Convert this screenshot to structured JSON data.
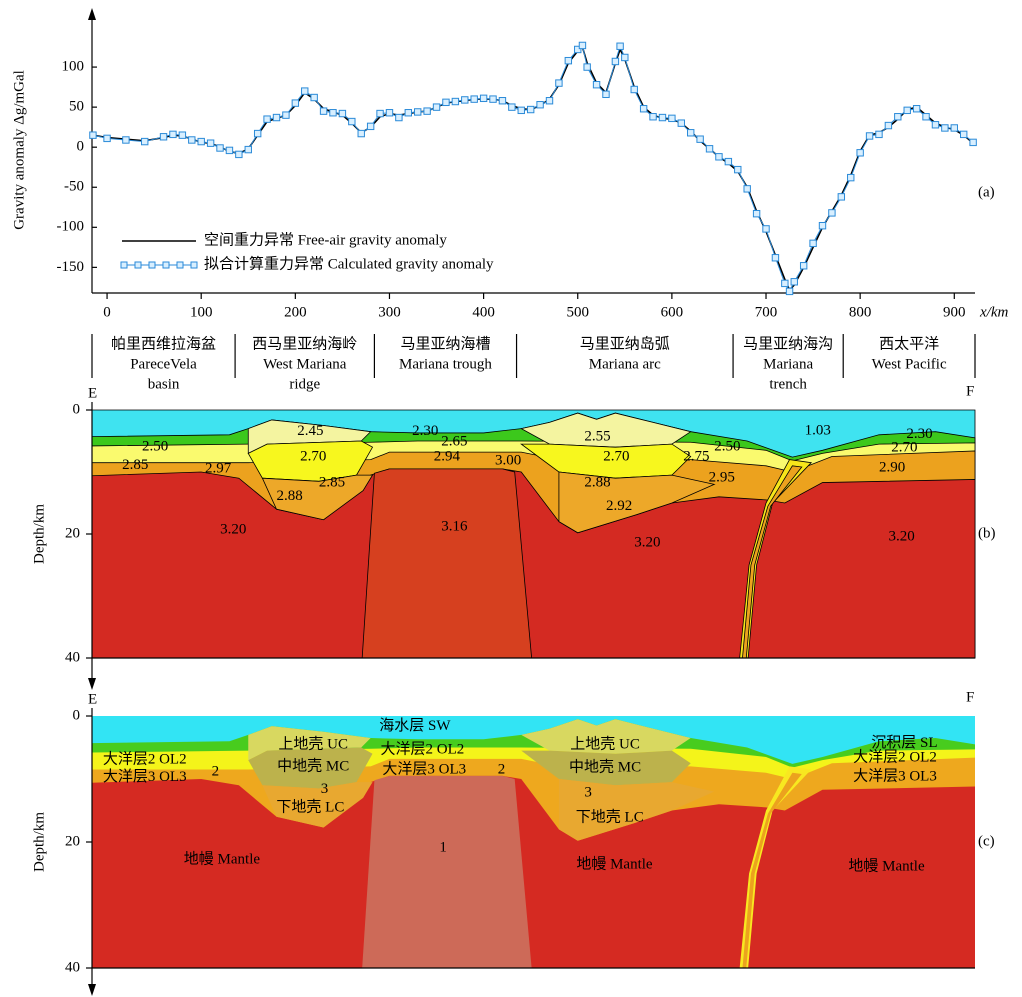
{
  "chart_data": [
    {
      "type": "line",
      "y_label": "Gravity anomaly Δg/mGal",
      "x_label": "x/km",
      "panel_label": "(a)",
      "xlim": [
        -16,
        922
      ],
      "ylim": [
        -182,
        165
      ],
      "xticks": [
        0,
        100,
        200,
        300,
        400,
        500,
        600,
        700,
        800,
        900
      ],
      "yticks": [
        -150,
        -100,
        -50,
        0,
        50,
        100
      ],
      "legend": "lower left",
      "x": [
        -15,
        0,
        20,
        40,
        60,
        70,
        80,
        90,
        100,
        110,
        120,
        130,
        140,
        150,
        160,
        170,
        180,
        190,
        200,
        210,
        220,
        230,
        240,
        250,
        260,
        270,
        280,
        290,
        300,
        310,
        320,
        330,
        340,
        350,
        360,
        370,
        380,
        390,
        400,
        410,
        420,
        430,
        440,
        450,
        460,
        470,
        480,
        490,
        500,
        505,
        510,
        520,
        530,
        540,
        545,
        550,
        560,
        570,
        580,
        590,
        600,
        610,
        620,
        630,
        640,
        650,
        660,
        670,
        680,
        690,
        700,
        710,
        720,
        725,
        730,
        740,
        750,
        760,
        770,
        780,
        790,
        800,
        810,
        820,
        830,
        840,
        850,
        860,
        870,
        880,
        890,
        900,
        910,
        920
      ],
      "series": [
        {
          "name": "空间重力异常 Free-air gravity anomaly",
          "color": "#000000",
          "markers": false,
          "values": [
            15,
            12,
            10,
            8,
            12,
            15,
            14,
            10,
            6,
            5,
            0,
            -5,
            -8,
            -2,
            15,
            32,
            36,
            40,
            52,
            68,
            60,
            48,
            44,
            40,
            30,
            18,
            25,
            38,
            42,
            40,
            42,
            44,
            45,
            50,
            55,
            57,
            58,
            60,
            60,
            60,
            58,
            52,
            48,
            47,
            52,
            60,
            78,
            105,
            120,
            125,
            105,
            80,
            68,
            105,
            122,
            110,
            75,
            50,
            40,
            36,
            35,
            30,
            20,
            8,
            -2,
            -12,
            -20,
            -30,
            -50,
            -80,
            -105,
            -135,
            -165,
            -178,
            -172,
            -150,
            -125,
            -100,
            -80,
            -60,
            -35,
            -5,
            15,
            18,
            25,
            35,
            47,
            50,
            40,
            30,
            25,
            22,
            15,
            5
          ]
        },
        {
          "name": "拟合计算重力异常 Calculated gravity anomaly",
          "color": "#2a8ad8",
          "markers": true,
          "values": [
            15,
            11,
            9,
            7,
            13,
            16,
            15,
            9,
            7,
            5,
            -1,
            -4,
            -9,
            -3,
            17,
            35,
            37,
            40,
            55,
            70,
            62,
            45,
            43,
            42,
            32,
            17,
            26,
            42,
            43,
            37,
            43,
            44,
            45,
            50,
            56,
            57,
            59,
            60,
            61,
            60,
            58,
            50,
            46,
            47,
            53,
            58,
            80,
            108,
            122,
            127,
            100,
            78,
            66,
            107,
            126,
            112,
            72,
            48,
            38,
            37,
            36,
            30,
            18,
            10,
            -2,
            -12,
            -18,
            -28,
            -52,
            -83,
            -102,
            -138,
            -170,
            -180,
            -168,
            -148,
            -120,
            -98,
            -82,
            -62,
            -38,
            -7,
            14,
            16,
            27,
            38,
            46,
            48,
            38,
            28,
            24,
            24,
            16,
            6
          ]
        }
      ],
      "region_bounds": [
        -16,
        136,
        284,
        435,
        665,
        782,
        922
      ],
      "regions": [
        {
          "lines": [
            "帕里西维拉海盆",
            "PareceVela",
            "basin"
          ]
        },
        {
          "lines": [
            "西马里亚纳海岭",
            "West Mariana",
            "ridge"
          ]
        },
        {
          "lines": [
            "马里亚纳海槽",
            "Mariana trough"
          ]
        },
        {
          "lines": [
            "马里亚纳岛弧",
            "Mariana arc"
          ]
        },
        {
          "lines": [
            "马里亚纳海沟",
            "Mariana",
            "trench"
          ]
        },
        {
          "lines": [
            "西太平洋",
            "West Pacific"
          ]
        }
      ]
    },
    {
      "type": "section",
      "y_label": "Depth/km",
      "panel_label": "(b)",
      "left": "E",
      "right": "F",
      "xlim": [
        -16,
        922
      ],
      "ylim": [
        0,
        40
      ],
      "yticks": [
        0,
        20,
        40
      ],
      "outline": true,
      "bodies": [
        {
          "color": "#3fe3f0",
          "x": [
            -16,
            922,
            922,
            -16
          ],
          "depth": [
            0,
            0,
            40,
            40
          ]
        },
        {
          "color": "#3cc81c",
          "x": [
            -16,
            130,
            150,
            175,
            230,
            280,
            330,
            400,
            440,
            470,
            500,
            520,
            540,
            580,
            620,
            680,
            728,
            760,
            820,
            880,
            922,
            922,
            -16
          ],
          "depth": [
            4.3,
            4.0,
            3.0,
            1.6,
            2.5,
            3.5,
            3.7,
            3.7,
            3.0,
            2.0,
            0.5,
            1.5,
            0.5,
            2.0,
            3.5,
            5.0,
            7.6,
            6.5,
            4.0,
            3.5,
            4.5,
            40,
            40
          ]
        },
        {
          "color": "#fafa6e",
          "x": [
            -16,
            150,
            280,
            330,
            440,
            620,
            700,
            728,
            760,
            820,
            922,
            922,
            -16
          ],
          "depth": [
            5.8,
            5.5,
            5.2,
            5.0,
            5.0,
            5.2,
            6.5,
            8.2,
            7.0,
            5.5,
            5.3,
            40,
            40
          ]
        },
        {
          "color": "#eca21e",
          "x": [
            -16,
            150,
            280,
            300,
            440,
            480,
            620,
            700,
            728,
            770,
            922,
            922,
            -16
          ],
          "depth": [
            8.5,
            8.5,
            8.0,
            6.8,
            6.8,
            8.0,
            8.0,
            9.0,
            10.0,
            7.5,
            6.6,
            40,
            40
          ]
        },
        {
          "color": "#d42a22",
          "x": [
            -16,
            100,
            140,
            180,
            230,
            270,
            280,
            300,
            420,
            440,
            480,
            500,
            560,
            600,
            650,
            700,
            720,
            760,
            922,
            922,
            -16
          ],
          "depth": [
            10.6,
            10.0,
            11.0,
            16.0,
            17.7,
            13.0,
            10.5,
            9.5,
            9.5,
            10.0,
            18.0,
            19.8,
            17.0,
            15.0,
            14.0,
            14.5,
            15.0,
            11.7,
            11.2,
            40,
            40
          ]
        },
        {
          "color": "#d6401f",
          "x": [
            284,
            300,
            420,
            433,
            451,
            271
          ],
          "depth": [
            10.2,
            9.5,
            9.5,
            10.0,
            40,
            40
          ]
        },
        {
          "color": "#f4f4a0",
          "x": [
            150,
            175,
            230,
            280,
            270,
            230,
            170,
            150
          ],
          "depth": [
            3.0,
            1.6,
            2.5,
            3.5,
            5.0,
            5.2,
            5.5,
            7.0
          ]
        },
        {
          "color": "#f7f71e",
          "x": [
            150,
            170,
            230,
            270,
            282,
            265,
            225,
            165
          ],
          "depth": [
            7.0,
            5.5,
            5.2,
            5.0,
            6.0,
            10.5,
            11.5,
            11.0
          ]
        },
        {
          "color": "#eda829",
          "x": [
            165,
            225,
            265,
            282,
            272,
            230,
            180
          ],
          "depth": [
            11.0,
            11.5,
            10.5,
            10.5,
            13.0,
            17.7,
            16.0
          ]
        },
        {
          "color": "#f4f4a0",
          "x": [
            440,
            470,
            500,
            520,
            540,
            580,
            620,
            600,
            540,
            470
          ],
          "depth": [
            3.0,
            2.0,
            0.5,
            1.5,
            0.5,
            2.0,
            3.5,
            5.5,
            6.0,
            5.5
          ]
        },
        {
          "color": "#f7f71e",
          "x": [
            440,
            470,
            540,
            600,
            620,
            600,
            540,
            480
          ],
          "depth": [
            5.5,
            5.5,
            6.0,
            5.5,
            7.5,
            10.5,
            11.0,
            10.0
          ]
        },
        {
          "color": "#eda829",
          "x": [
            480,
            540,
            600,
            645,
            600,
            560,
            500,
            480
          ],
          "depth": [
            10.0,
            11.0,
            10.5,
            12.0,
            15.0,
            17.0,
            19.8,
            18.0
          ]
        },
        {
          "color": "#f7e61a",
          "x": [
            748,
            707,
            690,
            681,
            672,
            682,
            700,
            725
          ],
          "depth": [
            8.5,
            15,
            25,
            40,
            40,
            25,
            15,
            8
          ]
        },
        {
          "color": "#eca21e",
          "x": [
            738,
            705,
            688,
            679,
            675,
            684,
            702,
            728
          ],
          "depth": [
            9.2,
            15.5,
            25,
            40,
            40,
            25,
            15.5,
            9
          ]
        }
      ],
      "labels": [
        {
          "text": 1.03,
          "x": 755,
          "depth": 3.4
        },
        {
          "text": {
            "value": 2.3,
            "label": "2.30"
          },
          "x": 338,
          "depth": 3.5
        },
        {
          "text": {
            "value": 2.3,
            "label": "2.30"
          },
          "x": 863,
          "depth": 4.0
        },
        {
          "text": {
            "value": 2.5,
            "label": "2.50"
          },
          "x": 51,
          "depth": 6.0
        },
        {
          "text": {
            "value": 2.5,
            "label": "2.50"
          },
          "x": 659,
          "depth": 6.0
        },
        {
          "text": 2.85,
          "x": 30,
          "depth": 9.0
        },
        {
          "text": 2.97,
          "x": 118,
          "depth": 9.5
        },
        {
          "text": 2.45,
          "x": 216,
          "depth": 3.5
        },
        {
          "text": {
            "value": 2.7,
            "label": "2.70"
          },
          "x": 219,
          "depth": 7.6
        },
        {
          "text": {
            "value": 2.7,
            "label": "2.70"
          },
          "x": 541,
          "depth": 7.6
        },
        {
          "text": {
            "value": 2.7,
            "label": "2.70"
          },
          "x": 847,
          "depth": 6.1
        },
        {
          "text": 2.88,
          "x": 194,
          "depth": 14.0
        },
        {
          "text": 2.88,
          "x": 521,
          "depth": 11.8
        },
        {
          "text": 2.85,
          "x": 239,
          "depth": 11.8
        },
        {
          "text": 2.65,
          "x": 369,
          "depth": 5.2
        },
        {
          "text": 2.94,
          "x": 361,
          "depth": 7.6
        },
        {
          "text": {
            "value": 3,
            "label": "3.00"
          },
          "x": 426,
          "depth": 8.2
        },
        {
          "text": 2.55,
          "x": 521,
          "depth": 4.4
        },
        {
          "text": 2.75,
          "x": 626,
          "depth": 7.6
        },
        {
          "text": 2.95,
          "x": 653,
          "depth": 11.0
        },
        {
          "text": 2.92,
          "x": 544,
          "depth": 15.6
        },
        {
          "text": {
            "value": 2.9,
            "label": "2.90"
          },
          "x": 834,
          "depth": 9.4
        },
        {
          "text": {
            "value": 3.2,
            "label": "3.20"
          },
          "x": 134,
          "depth": 19.4
        },
        {
          "text": {
            "value": 3.2,
            "label": "3.20"
          },
          "x": 574,
          "depth": 21.5
        },
        {
          "text": {
            "value": 3.2,
            "label": "3.20"
          },
          "x": 844,
          "depth": 20.5
        },
        {
          "text": 3.16,
          "x": 369,
          "depth": 18.9
        }
      ]
    },
    {
      "type": "section",
      "y_label": "Depth/km",
      "panel_label": "(c)",
      "left": "E",
      "right": "F",
      "xlim": [
        -16,
        922
      ],
      "ylim": [
        0,
        40
      ],
      "yticks": [
        0,
        20,
        40
      ],
      "outline": false,
      "fills": [
        "#32e4f4",
        "#48cc1e",
        "#f4f41a",
        "#eea81e",
        "#d52a22",
        "#cd6a58",
        "#d8d860",
        "#bcb24c",
        "#e8a830",
        "#d8d860",
        "#bcb24c",
        "#e8a830",
        "#f8e820",
        "#eca21e"
      ],
      "labels": [
        {
          "text": "海水层  SW",
          "x": 327,
          "depth": 1.7
        },
        {
          "text": "大洋层2 OL2",
          "x": 335,
          "depth": 5.4
        },
        {
          "text": "大洋层2 OL2",
          "x": 40,
          "depth": 7.0
        },
        {
          "text": "大洋层2 OL2",
          "x": 837,
          "depth": 6.7
        },
        {
          "text": "大洋层3 OL3",
          "x": 337,
          "depth": 8.6
        },
        {
          "text": "大洋层3 OL3",
          "x": 40,
          "depth": 9.8
        },
        {
          "text": "大洋层3 OL3",
          "x": 837,
          "depth": 9.7
        },
        {
          "text": "上地壳  UC",
          "x": 219,
          "depth": 4.6
        },
        {
          "text": "上地壳  UC",
          "x": 529,
          "depth": 4.6
        },
        {
          "text": "中地壳  MC",
          "x": 219,
          "depth": 8.1
        },
        {
          "text": "中地壳  MC",
          "x": 529,
          "depth": 8.3
        },
        {
          "text": "下地壳  LC",
          "x": 216,
          "depth": 14.6
        },
        {
          "text": "下地壳  LC",
          "x": 534,
          "depth": 16.2
        },
        {
          "text": "2",
          "x": 115,
          "depth": 8.9
        },
        {
          "text": "2",
          "x": 419,
          "depth": 8.6
        },
        {
          "text": "3",
          "x": 231,
          "depth": 11.7
        },
        {
          "text": "3",
          "x": 511,
          "depth": 12.2
        },
        {
          "text": "1",
          "x": 357,
          "depth": 21.0
        },
        {
          "text": "沉积层  SL",
          "x": 847,
          "depth": 4.4
        },
        {
          "text": "地幔  Mantle",
          "x": 122,
          "depth": 22.9
        },
        {
          "text": "地幔  Mantle",
          "x": 539,
          "depth": 23.7
        },
        {
          "text": "地幔  Mantle",
          "x": 828,
          "depth": 24.0
        }
      ]
    }
  ]
}
